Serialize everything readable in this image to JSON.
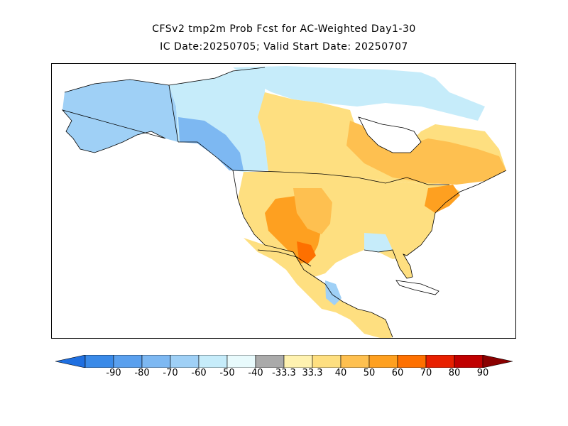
{
  "title_line1": "CFSv2 tmp2m Prob Fcst for AC-Weighted Day1-30",
  "title_line2": "IC Date:20250705; Valid Start Date: 20250707",
  "colorbar": {
    "labels": [
      "-90",
      "-80",
      "-70",
      "-60",
      "-50",
      "-40",
      "-33.3",
      "33.3",
      "40",
      "50",
      "60",
      "70",
      "80",
      "90"
    ],
    "colors": [
      "#1f6fe0",
      "#3a8ae8",
      "#5aa0ee",
      "#7db8f2",
      "#9fd0f6",
      "#c6ecfa",
      "#e8fafc",
      "#aaaaaa",
      "#fff2b0",
      "#fedf80",
      "#fec050",
      "#fea020",
      "#fe7000",
      "#e82000",
      "#c00000",
      "#8a0000"
    ]
  },
  "map": {
    "colors": {
      "cold_light": "#c6ecfa",
      "cold_mid": "#9fd0f6",
      "cold_strong": "#7db8f2",
      "warm_light": "#fff2b0",
      "warm_mid": "#fedf80",
      "warm_strong": "#fec050",
      "warm_hot": "#fea020",
      "warm_hotter": "#fe7000"
    }
  }
}
